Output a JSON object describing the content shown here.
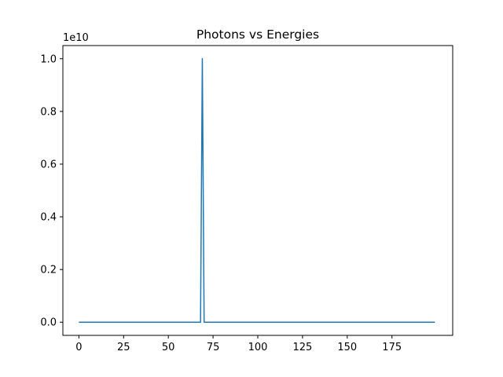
{
  "chart_data": {
    "type": "line",
    "title": "Photons vs Energies",
    "xlabel": "",
    "ylabel": "",
    "y_offset_label": "1e10",
    "xlim": [
      -8.95,
      208.95
    ],
    "ylim": [
      -0.05,
      1.05
    ],
    "x_ticks": [
      0,
      25,
      50,
      75,
      100,
      125,
      150,
      175
    ],
    "x_tick_labels": [
      "0",
      "25",
      "50",
      "75",
      "100",
      "125",
      "150",
      "175"
    ],
    "y_ticks": [
      0.0,
      0.2,
      0.4,
      0.6,
      0.8,
      1.0
    ],
    "y_tick_labels": [
      "0.0",
      "0.2",
      "0.4",
      "0.6",
      "0.8",
      "1.0"
    ],
    "grid": false,
    "legend": "none",
    "series": [
      {
        "color": "#1f77b4",
        "x": [
          0,
          68,
          69,
          70,
          199
        ],
        "y": [
          0.0,
          0.0,
          1.0,
          0.0,
          0.0
        ]
      }
    ]
  }
}
